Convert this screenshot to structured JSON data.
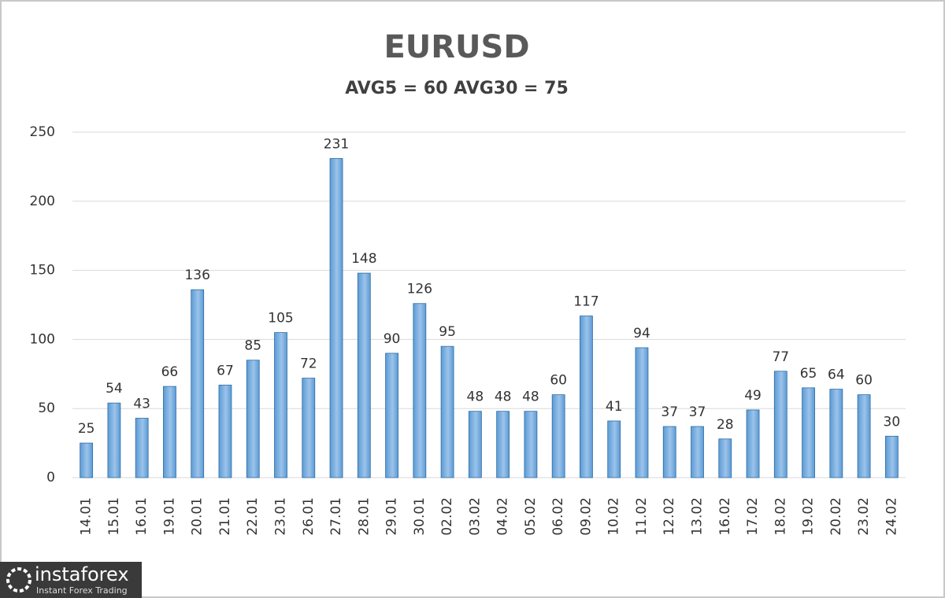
{
  "chart_data": {
    "type": "bar",
    "title": "EURUSD",
    "subtitle": "AVG5 = 60 AVG30 = 75",
    "categories": [
      "14.01",
      "15.01",
      "16.01",
      "19.01",
      "20.01",
      "21.01",
      "22.01",
      "23.01",
      "26.01",
      "27.01",
      "28.01",
      "29.01",
      "30.01",
      "02.02",
      "03.02",
      "04.02",
      "05.02",
      "06.02",
      "09.02",
      "10.02",
      "11.02",
      "12.02",
      "13.02",
      "16.02",
      "17.02",
      "18.02",
      "19.02",
      "20.02",
      "23.02",
      "24.02"
    ],
    "values": [
      25,
      54,
      43,
      66,
      136,
      67,
      85,
      105,
      72,
      231,
      148,
      90,
      126,
      95,
      48,
      48,
      48,
      60,
      117,
      41,
      94,
      37,
      37,
      28,
      49,
      77,
      65,
      64,
      60,
      30
    ],
    "color": "#5b9bd5",
    "ylim": [
      0,
      250
    ],
    "yticks": [
      0,
      50,
      100,
      150,
      200,
      250
    ],
    "grid": true
  },
  "logo": {
    "name": "instaforex",
    "tagline": "Instant Forex Trading"
  }
}
